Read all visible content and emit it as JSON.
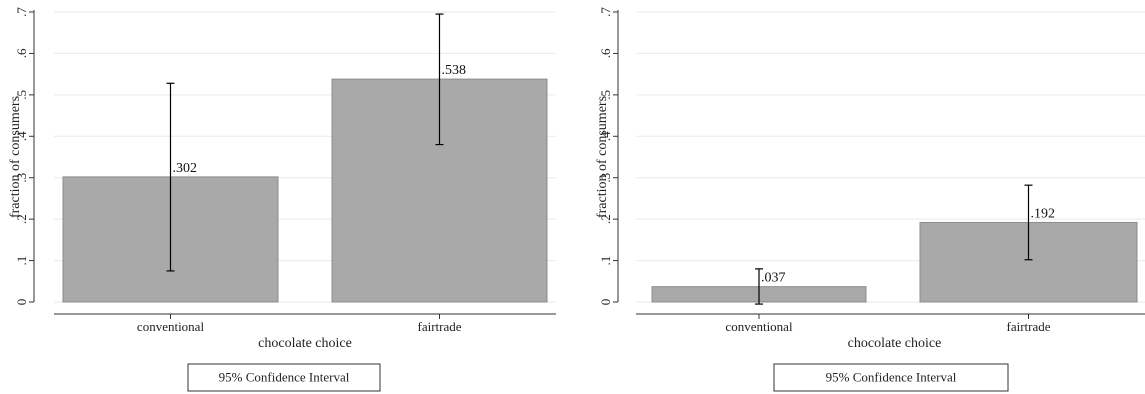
{
  "chart_data": [
    {
      "type": "bar",
      "categories": [
        "conventional",
        "fairtrade"
      ],
      "values": [
        0.302,
        0.538
      ],
      "value_labels": [
        ".302",
        ".538"
      ],
      "ci_low": [
        0.075,
        0.38
      ],
      "ci_high": [
        0.528,
        0.695
      ],
      "xlabel": "chocolate choice",
      "ylabel": "fraction of consumers",
      "ylim": [
        0,
        0.7
      ],
      "yticks": [
        0,
        0.1,
        0.2,
        0.3,
        0.4,
        0.5,
        0.6,
        0.7
      ],
      "ytick_labels": [
        "0",
        ".1",
        ".2",
        ".3",
        ".4",
        ".5",
        ".6",
        ".7"
      ],
      "grid": true,
      "legend": "95% Confidence Interval",
      "legend_position": "bottom",
      "bar_color": "#a9a9a9"
    },
    {
      "type": "bar",
      "categories": [
        "conventional",
        "fairtrade"
      ],
      "values": [
        0.037,
        0.192
      ],
      "value_labels": [
        ".037",
        ".192"
      ],
      "ci_low": [
        -0.005,
        0.102
      ],
      "ci_high": [
        0.08,
        0.282
      ],
      "xlabel": "chocolate choice",
      "ylabel": "fraction of consumers",
      "ylim": [
        0,
        0.7
      ],
      "yticks": [
        0,
        0.1,
        0.2,
        0.3,
        0.4,
        0.5,
        0.6,
        0.7
      ],
      "ytick_labels": [
        "0",
        ".1",
        ".2",
        ".3",
        ".4",
        ".5",
        ".6",
        ".7"
      ],
      "grid": true,
      "legend": "95% Confidence Interval",
      "legend_position": "bottom",
      "bar_color": "#a9a9a9"
    }
  ]
}
